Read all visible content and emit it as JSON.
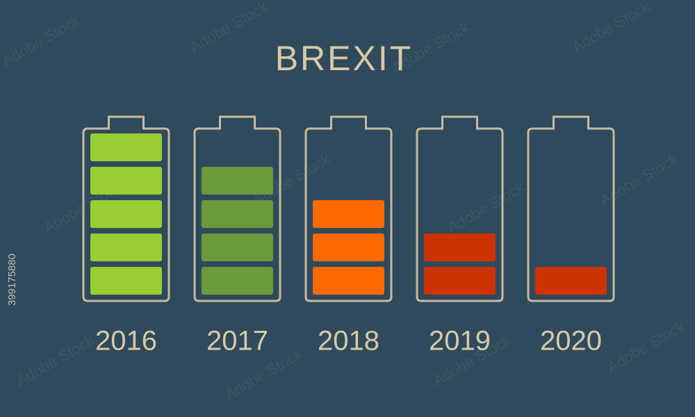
{
  "chart_data": {
    "type": "battery",
    "title": "BREXIT",
    "categories": [
      "2016",
      "2017",
      "2018",
      "2019",
      "2020"
    ],
    "values": [
      5,
      4,
      3,
      2,
      1
    ],
    "colors": [
      "#9acd32",
      "#6a9a3a",
      "#ff6a00",
      "#cc3300",
      "#cc3300"
    ],
    "ylim": [
      0,
      5
    ]
  },
  "watermark": "Adobe Stock",
  "stock_id": "399175880"
}
